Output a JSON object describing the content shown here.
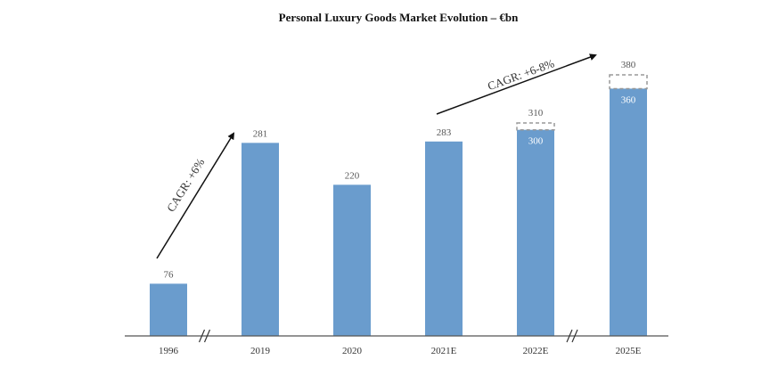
{
  "chart_data": {
    "type": "bar",
    "title": "Personal Luxury Goods Market Evolution – €bn",
    "categories": [
      "1996",
      "2019",
      "2020",
      "2021E",
      "2022E",
      "2025E"
    ],
    "values": [
      76,
      281,
      220,
      283,
      300,
      360
    ],
    "value_labels": [
      "76",
      "281",
      "220",
      "283",
      "300",
      "360"
    ],
    "upper_range": [
      null,
      null,
      null,
      null,
      310,
      380
    ],
    "upper_range_labels": [
      "",
      "",
      "",
      "",
      "310",
      "380"
    ],
    "xlabel": "",
    "ylabel": "",
    "ylim": [
      0,
      400
    ],
    "grid": false,
    "axis_breaks_after": [
      "1996",
      "2022E"
    ],
    "annotations": [
      {
        "text": "CAGR: +6%",
        "from": "1996",
        "to": "2019"
      },
      {
        "text": "CAGR: +6-8%",
        "from": "2021E",
        "to": "2025E"
      }
    ],
    "colors": {
      "bar": "#6a9ccd",
      "range_border": "#999999",
      "axis": "#555555",
      "arrow": "#111111"
    }
  }
}
